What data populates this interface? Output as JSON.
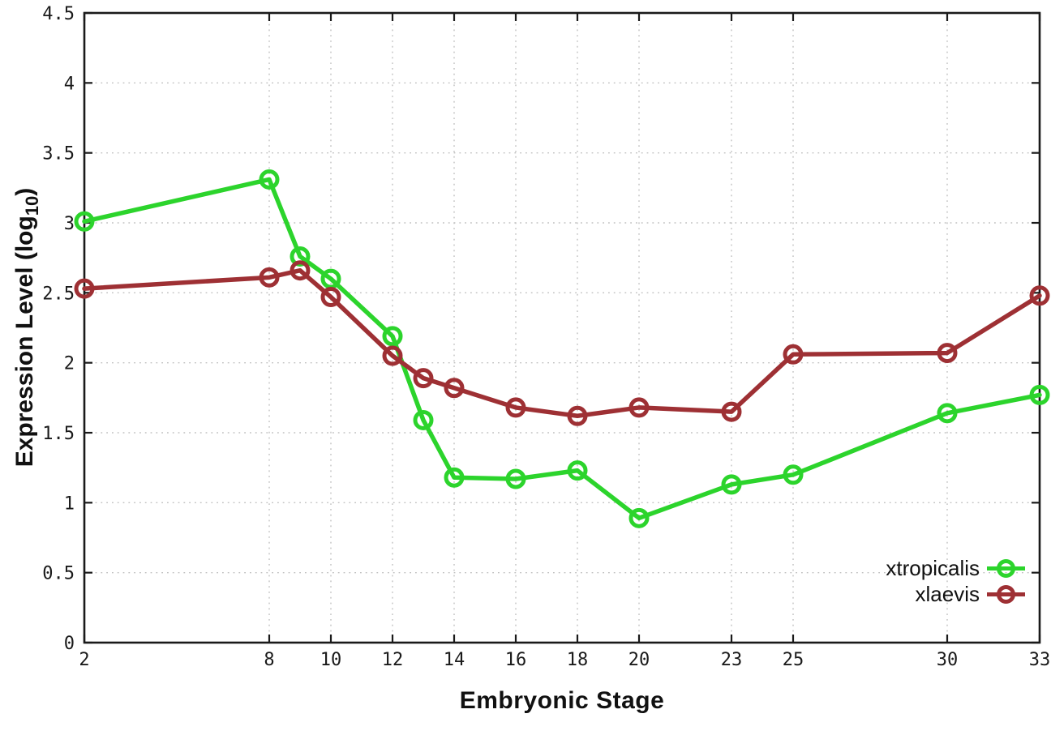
{
  "chart_data": {
    "type": "line",
    "title": "",
    "xlabel": "Embryonic Stage",
    "ylabel": "Expression Level (log10)",
    "ylabel_parts": {
      "main": "Expression Level (log",
      "sub": "10",
      "suffix": ")"
    },
    "x": [
      2,
      8,
      9,
      10,
      12,
      13,
      14,
      16,
      18,
      20,
      23,
      25,
      30,
      33
    ],
    "series": [
      {
        "name": "xtropicalis",
        "color": "#2cd42c",
        "values": [
          3.01,
          3.31,
          2.76,
          2.6,
          2.19,
          1.59,
          1.18,
          1.17,
          1.23,
          0.89,
          1.13,
          1.2,
          1.64,
          1.77
        ]
      },
      {
        "name": "xlaevis",
        "color": "#9e3034",
        "values": [
          2.53,
          2.61,
          2.66,
          2.47,
          2.05,
          1.89,
          1.82,
          1.68,
          1.62,
          1.68,
          1.65,
          2.06,
          2.07,
          2.48
        ]
      }
    ],
    "xlim": [
      2,
      33
    ],
    "ylim": [
      0,
      4.5
    ],
    "xticks": [
      2,
      8,
      10,
      12,
      14,
      16,
      18,
      20,
      23,
      25,
      30,
      33
    ],
    "yticks": [
      0,
      0.5,
      1,
      1.5,
      2,
      2.5,
      3,
      3.5,
      4,
      4.5
    ],
    "grid": true,
    "legend_position": "bottom-right-inside",
    "marker": "open-circle"
  },
  "colors": {
    "background": "#ffffff",
    "axis": "#1a1a1a",
    "grid": "#c0c0c0",
    "tick_label": "#1a1a1a"
  }
}
